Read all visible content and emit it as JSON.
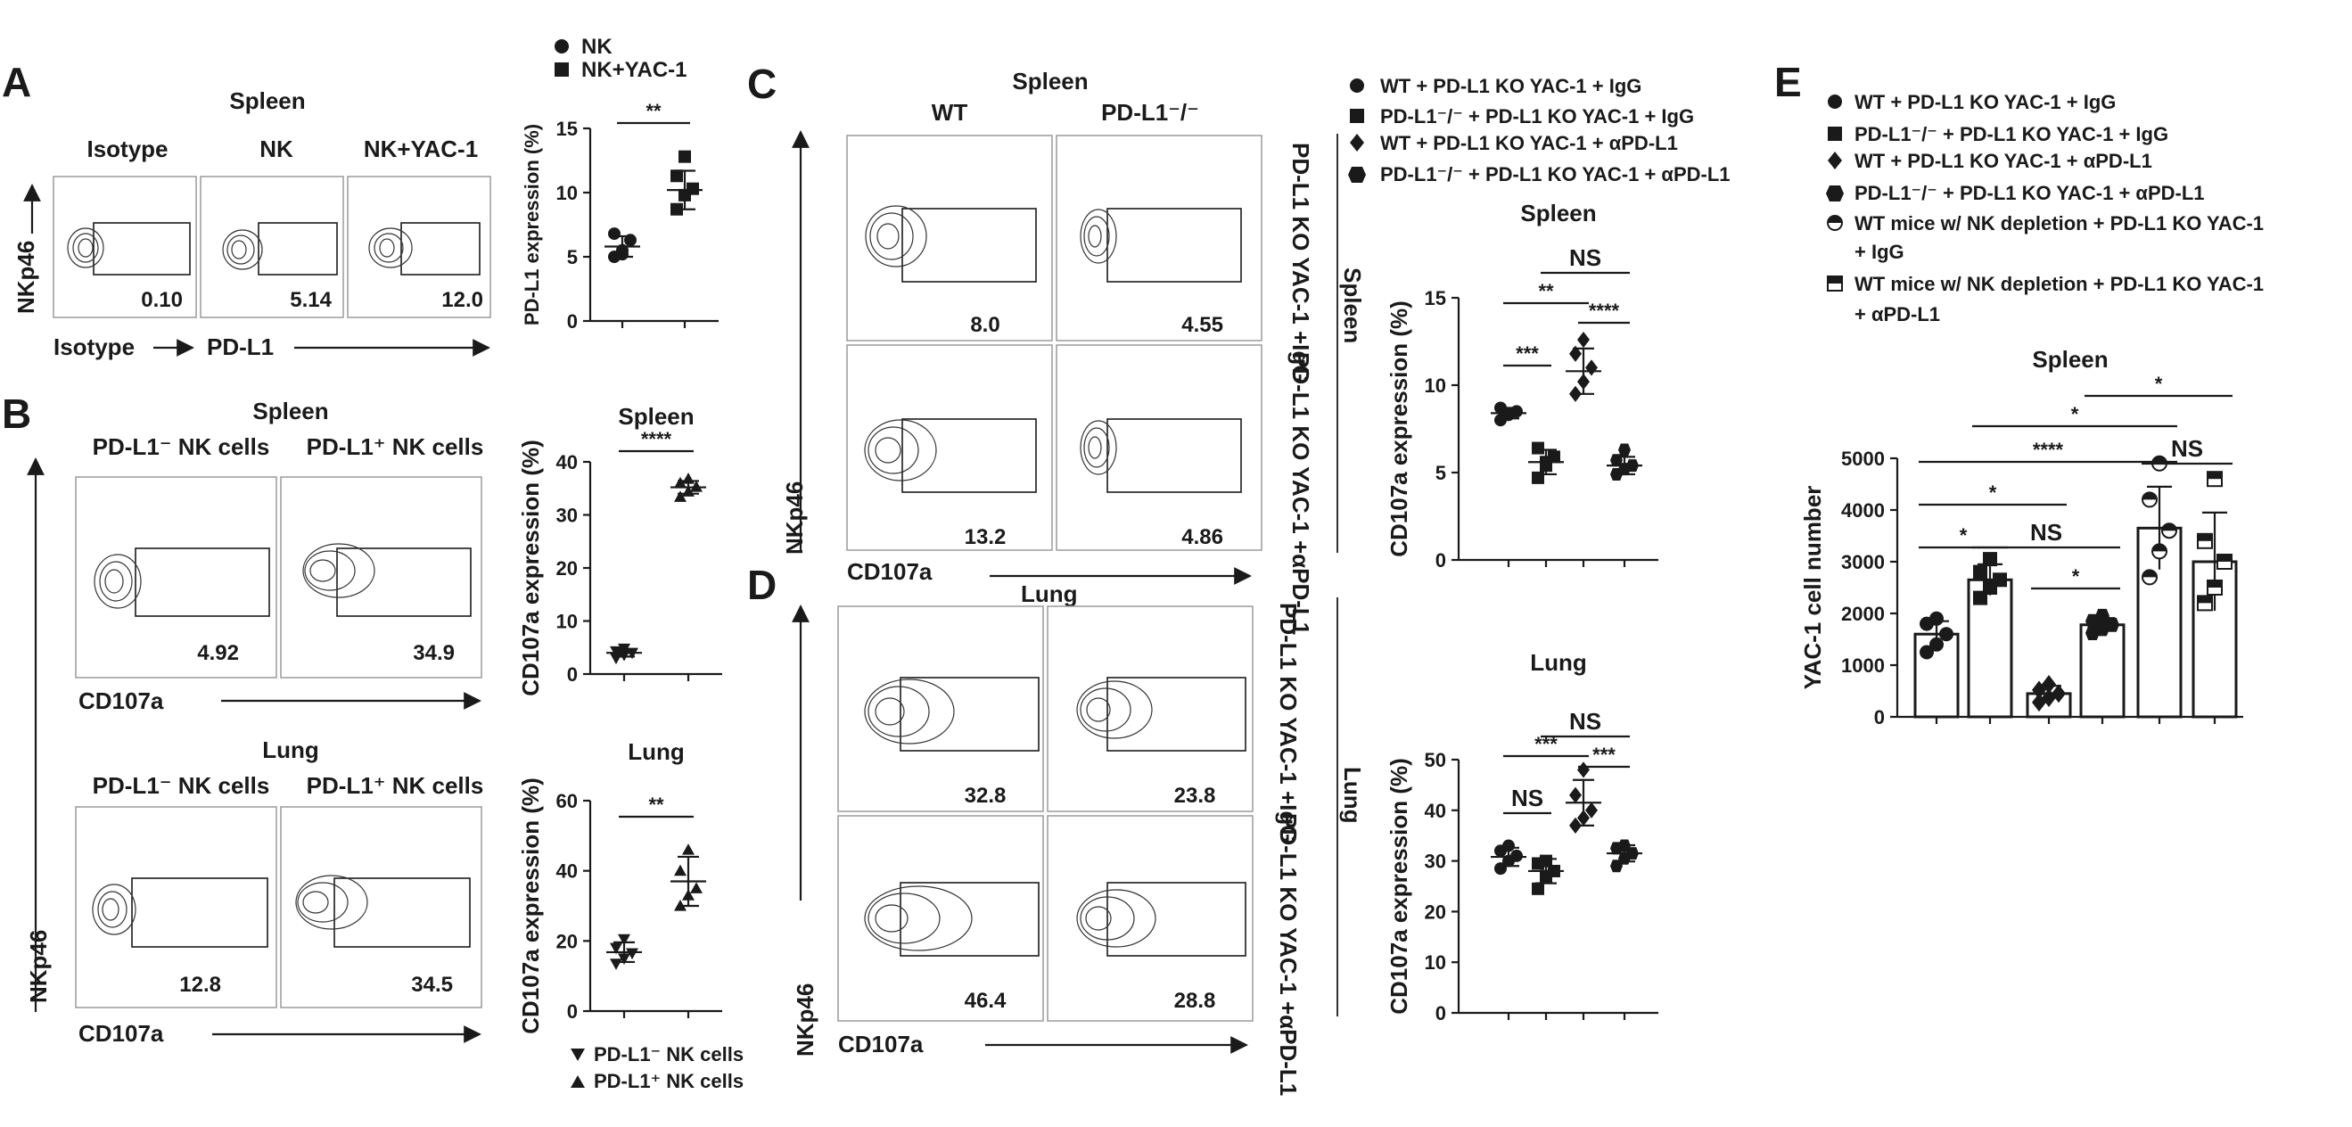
{
  "figure": {
    "panels": [
      {
        "letter": "A",
        "title": "Spleen",
        "plot_labels": [
          "Isotype",
          "NK",
          "NK+YAC-1"
        ],
        "values": [
          "0.10",
          "5.14",
          "12.0"
        ],
        "yaxis": "NKp46",
        "xaxis_1": "Isotype",
        "xaxis_2": "PD-L1"
      },
      {
        "letter": "B",
        "spleen_title": "Spleen",
        "lung_title": "Lung",
        "col_labels": [
          "PD-L1⁻ NK cells",
          "PD-L1⁺ NK cells"
        ],
        "spleen_values": [
          "4.92",
          "34.9"
        ],
        "lung_values": [
          "12.8",
          "34.5"
        ],
        "xaxis": "CD107a",
        "yaxis": "NKp46"
      },
      {
        "letter": "C",
        "title": "Spleen",
        "col_labels": [
          "WT",
          "PD-L1⁻/⁻"
        ],
        "values": [
          "8.0",
          "4.55",
          "13.2",
          "4.86"
        ],
        "row_labels": [
          "PD-L1 KO YAC-1 +IgG",
          "PD-L1 KO YAC-1 +αPD-L1"
        ],
        "side_label": "Spleen",
        "xaxis": "CD107a",
        "yaxis": "NKp46",
        "lung_text": "Lung"
      },
      {
        "letter": "D",
        "values": [
          "32.8",
          "23.8",
          "46.4",
          "28.8"
        ],
        "row_labels": [
          "PD-L1 KO YAC-1 +IgG",
          "PD-L1 KO YAC-1 +αPD-L1"
        ],
        "side_label": "Lung",
        "xaxis": "CD107a",
        "yaxis": "NKp46"
      },
      {
        "letter": "E"
      }
    ],
    "legend_A": [
      "NK",
      "NK+YAC-1"
    ],
    "legend_B": [
      "PD-L1⁻ NK cells",
      "PD-L1⁺ NK cells"
    ],
    "legend_CD": [
      "WT + PD-L1 KO YAC-1 + IgG",
      "PD-L1⁻/⁻ + PD-L1 KO YAC-1 + IgG",
      "WT + PD-L1 KO YAC-1 + αPD-L1",
      "PD-L1⁻/⁻ + PD-L1 KO YAC-1 + αPD-L1"
    ],
    "legend_E": [
      "WT + PD-L1 KO YAC-1 + IgG",
      "PD-L1⁻/⁻ + PD-L1 KO YAC-1 + IgG",
      "WT + PD-L1 KO YAC-1 + αPD-L1",
      "PD-L1⁻/⁻ + PD-L1 KO YAC-1 + αPD-L1",
      "WT mice w/ NK depletion + PD-L1 KO YAC-1",
      "+ IgG",
      "WT mice w/ NK depletion + PD-L1 KO YAC-1",
      "+ αPD-L1"
    ]
  },
  "chart_data": [
    {
      "id": "A",
      "type": "scatter",
      "title": "",
      "ylabel": "PD-L1 expression (%)",
      "ylim": [
        0,
        15
      ],
      "yticks": [
        0,
        5,
        10,
        15
      ],
      "series": [
        {
          "name": "NK",
          "marker": "circle",
          "points": [
            5.0,
            5.5,
            6.3,
            6.8,
            5.2
          ],
          "mean": 5.8,
          "sd": 0.8
        },
        {
          "name": "NK+YAC-1",
          "marker": "square",
          "points": [
            8.7,
            9.8,
            10.3,
            11.3,
            12.8
          ],
          "mean": 10.2,
          "sd": 1.5
        }
      ],
      "significance": [
        {
          "from": 0,
          "to": 1,
          "label": "**"
        }
      ]
    },
    {
      "id": "B-spleen",
      "type": "scatter",
      "title": "Spleen",
      "ylabel": "CD107a expression (%)",
      "ylim": [
        0,
        40
      ],
      "yticks": [
        0,
        10,
        20,
        30,
        40
      ],
      "series": [
        {
          "name": "PD-L1⁻ NK cells",
          "marker": "triangle-down",
          "points": [
            3.0,
            3.6,
            4.0,
            4.3,
            4.8
          ],
          "mean": 4.0,
          "sd": 0.7
        },
        {
          "name": "PD-L1⁺ NK cells",
          "marker": "triangle-up",
          "points": [
            33.4,
            34.4,
            35.3,
            36.0,
            36.8
          ],
          "mean": 35.2,
          "sd": 1.2
        }
      ],
      "significance": [
        {
          "from": 0,
          "to": 1,
          "label": "****"
        }
      ]
    },
    {
      "id": "B-lung",
      "type": "scatter",
      "title": "Lung",
      "ylabel": "CD107a expression (%)",
      "ylim": [
        0,
        60
      ],
      "yticks": [
        0,
        20,
        40,
        60
      ],
      "series": [
        {
          "name": "PD-L1⁻ NK cells",
          "marker": "triangle-down",
          "points": [
            13.5,
            15.0,
            16.5,
            18.0,
            20.5
          ],
          "mean": 16.8,
          "sd": 2.8
        },
        {
          "name": "PD-L1⁺ NK cells",
          "marker": "triangle-up",
          "points": [
            30.0,
            33.0,
            35.0,
            40.0,
            46.0
          ],
          "mean": 37.0,
          "sd": 7.0
        }
      ],
      "significance": [
        {
          "from": 0,
          "to": 1,
          "label": "**"
        }
      ]
    },
    {
      "id": "C-spleen",
      "type": "scatter",
      "title": "Spleen",
      "ylabel": "CD107a expression (%)",
      "ylim": [
        0,
        15
      ],
      "yticks": [
        0,
        5,
        10,
        15
      ],
      "series": [
        {
          "name": "WT + PD-L1 KO YAC-1 + IgG",
          "marker": "circle",
          "points": [
            8.0,
            8.3,
            8.5,
            8.7,
            8.4
          ],
          "mean": 8.4,
          "sd": 0.3
        },
        {
          "name": "PD-L1⁻/⁻ + PD-L1 KO YAC-1 + IgG",
          "marker": "square",
          "points": [
            4.7,
            5.4,
            5.9,
            6.4,
            5.6
          ],
          "mean": 5.6,
          "sd": 0.7
        },
        {
          "name": "WT + PD-L1 KO YAC-1 + αPD-L1",
          "marker": "diamond",
          "points": [
            9.5,
            10.2,
            11.0,
            11.8,
            12.6
          ],
          "mean": 10.8,
          "sd": 1.3
        },
        {
          "name": "PD-L1⁻/⁻ + PD-L1 KO YAC-1 + αPD-L1",
          "marker": "hexagon",
          "points": [
            4.9,
            5.2,
            5.4,
            5.7,
            6.3
          ],
          "mean": 5.4,
          "sd": 0.5
        }
      ],
      "significance": [
        {
          "from": 0,
          "to": 1,
          "label": "***"
        },
        {
          "from": 2,
          "to": 3,
          "label": "****"
        },
        {
          "from": 0,
          "to": 2,
          "label": "**"
        },
        {
          "from": 1,
          "to": 3,
          "label": "NS"
        }
      ]
    },
    {
      "id": "D-lung",
      "type": "scatter",
      "title": "Lung",
      "ylabel": "CD107a expression (%)",
      "ylim": [
        0,
        50
      ],
      "yticks": [
        0,
        10,
        20,
        30,
        40,
        50
      ],
      "series": [
        {
          "name": "WT + PD-L1 KO YAC-1 + IgG",
          "marker": "circle",
          "points": [
            28.5,
            30.0,
            31.0,
            32.0,
            33.0
          ],
          "mean": 30.8,
          "sd": 1.8
        },
        {
          "name": "PD-L1⁻/⁻ + PD-L1 KO YAC-1 + IgG",
          "marker": "square",
          "points": [
            24.5,
            27.0,
            28.0,
            29.5,
            30.0
          ],
          "mean": 28.0,
          "sd": 2.4
        },
        {
          "name": "WT + PD-L1 KO YAC-1 + αPD-L1",
          "marker": "diamond",
          "points": [
            37.0,
            38.5,
            40.0,
            43.0,
            48.0
          ],
          "mean": 41.5,
          "sd": 4.5
        },
        {
          "name": "PD-L1⁻/⁻ + PD-L1 KO YAC-1 + αPD-L1",
          "marker": "hexagon",
          "points": [
            29.0,
            30.5,
            31.5,
            32.5,
            33.0
          ],
          "mean": 31.5,
          "sd": 1.6
        }
      ],
      "significance": [
        {
          "from": 0,
          "to": 1,
          "label": "NS"
        },
        {
          "from": 2,
          "to": 3,
          "label": "***"
        },
        {
          "from": 0,
          "to": 2,
          "label": "***"
        },
        {
          "from": 1,
          "to": 3,
          "label": "NS"
        }
      ]
    },
    {
      "id": "E",
      "type": "bar",
      "title": "Spleen",
      "ylabel": "YAC-1 cell number",
      "ylim": [
        0,
        5000
      ],
      "yticks": [
        0,
        1000,
        2000,
        3000,
        4000,
        5000
      ],
      "series": [
        {
          "name": "WT + PD-L1 KO YAC-1 + IgG",
          "marker": "circle",
          "value": 1600,
          "sd": 250,
          "points": [
            1250,
            1400,
            1600,
            1800,
            1900
          ]
        },
        {
          "name": "PD-L1⁻/⁻ + PD-L1 KO YAC-1 + IgG",
          "marker": "square",
          "value": 2650,
          "sd": 300,
          "points": [
            2300,
            2500,
            2650,
            2800,
            3050
          ]
        },
        {
          "name": "WT + PD-L1 KO YAC-1 + αPD-L1",
          "marker": "diamond",
          "value": 450,
          "sd": 150,
          "points": [
            280,
            370,
            450,
            520,
            630
          ]
        },
        {
          "name": "PD-L1⁻/⁻ + PD-L1 KO YAC-1 + αPD-L1",
          "marker": "hexagon",
          "value": 1780,
          "sd": 130,
          "points": [
            1620,
            1700,
            1780,
            1850,
            1950
          ]
        },
        {
          "name": "WT mice w/ NK depletion + PD-L1 KO YAC-1 + IgG",
          "marker": "half-circle",
          "value": 3650,
          "sd": 800,
          "points": [
            2700,
            3200,
            3600,
            4200,
            4900
          ]
        },
        {
          "name": "WT mice w/ NK depletion + PD-L1 KO YAC-1 + αPD-L1",
          "marker": "half-square",
          "value": 3000,
          "sd": 950,
          "points": [
            2200,
            2500,
            3000,
            3400,
            4600
          ]
        }
      ],
      "significance": [
        {
          "from": 0,
          "to": 1,
          "label": "*"
        },
        {
          "from": 2,
          "to": 3,
          "label": "*"
        },
        {
          "from": 1,
          "to": 3,
          "label": "NS"
        },
        {
          "from": 0,
          "to": 2,
          "label": "*"
        },
        {
          "from": 4,
          "to": 5,
          "label": "NS"
        },
        {
          "from": 0,
          "to": 4,
          "label": "****"
        },
        {
          "from": 1,
          "to": 4,
          "label": "*"
        },
        {
          "from": 3,
          "to": 5,
          "label": "*"
        }
      ]
    }
  ]
}
